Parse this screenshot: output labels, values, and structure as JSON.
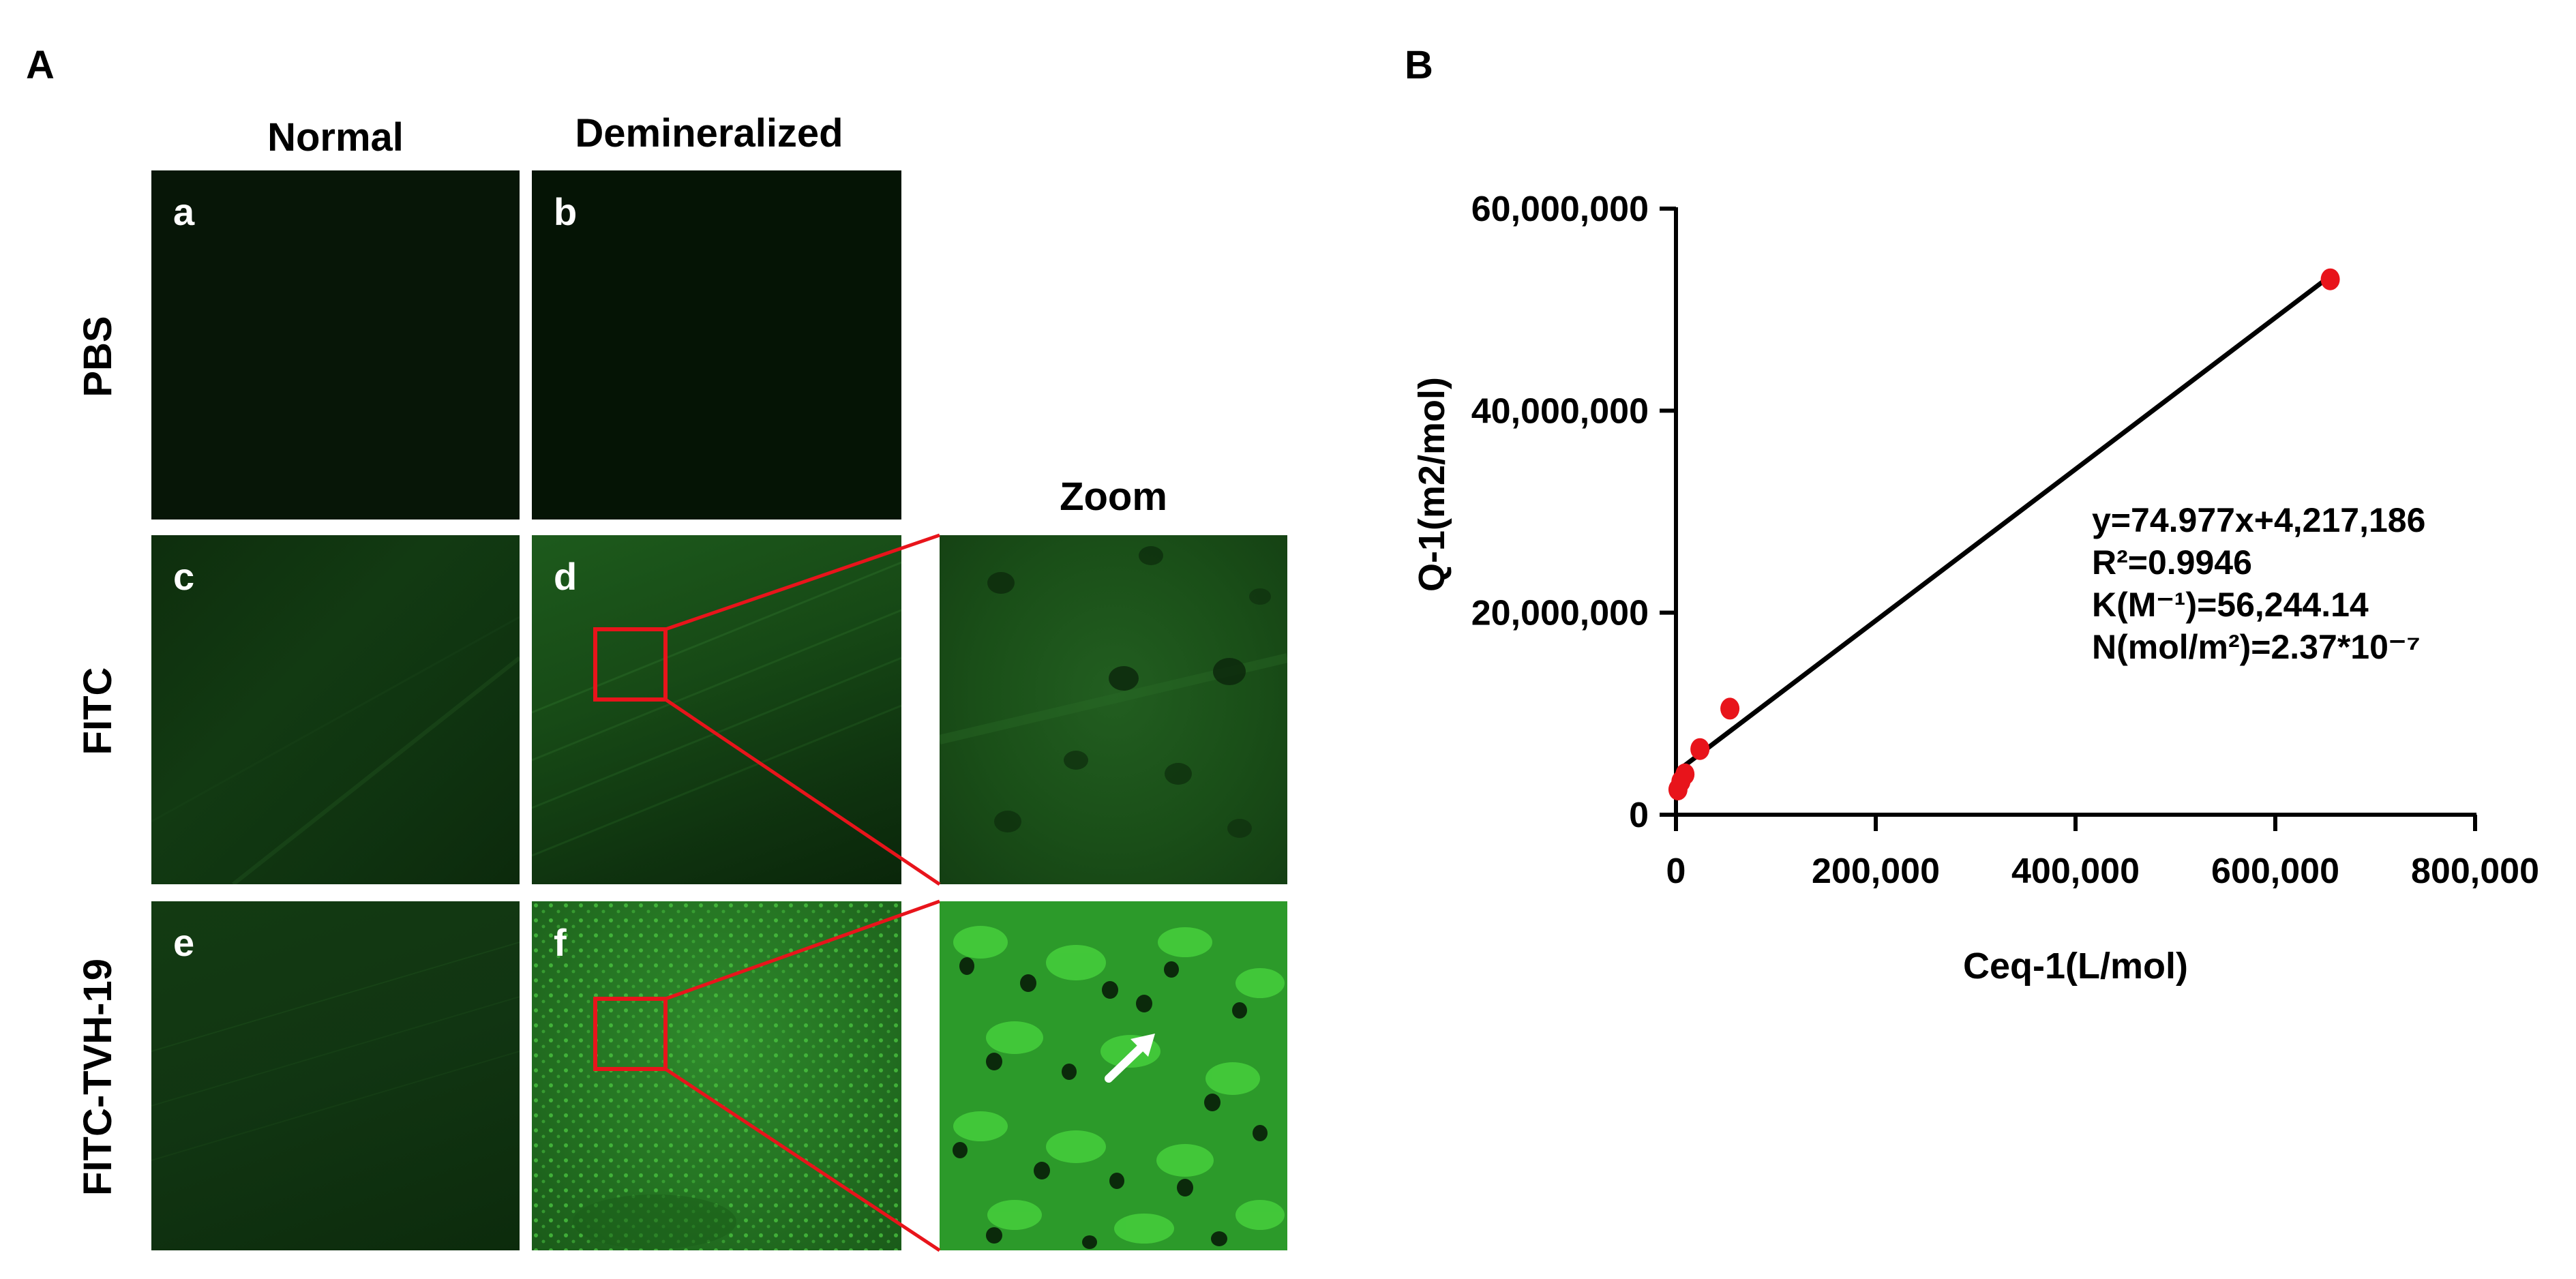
{
  "panel_a": {
    "letter": "A",
    "columns": [
      "Normal",
      "Demineralized",
      "Zoom"
    ],
    "rows": [
      "PBS",
      "FITC",
      "FITC-TVH-19"
    ],
    "sublabels": [
      "a",
      "b",
      "c",
      "d",
      "e",
      "f"
    ]
  },
  "panel_b": {
    "letter": "B",
    "annotations": [
      "y=74.977x+4,217,186",
      "R²=0.9946",
      "K(M⁻¹)=56,244.14",
      "N(mol/m²)=2.37*10⁻⁷"
    ]
  },
  "chart_data": {
    "type": "scatter",
    "xlabel": "Ceq-1(L/mol)",
    "ylabel": "Q-1(m2/mol)",
    "xlim": [
      0,
      800000
    ],
    "ylim": [
      0,
      60000000
    ],
    "x_ticks": [
      "0",
      "200,000",
      "400,000",
      "600,000",
      "800,000"
    ],
    "y_ticks": [
      "0",
      "20,000,000",
      "40,000,000",
      "60,000,000"
    ],
    "series": [
      {
        "points": [
          {
            "x": 2000,
            "y": 2500000
          },
          {
            "x": 5000,
            "y": 3300000
          },
          {
            "x": 9000,
            "y": 4000000
          },
          {
            "x": 24000,
            "y": 6500000
          },
          {
            "x": 54000,
            "y": 10500000
          },
          {
            "x": 655000,
            "y": 53000000
          }
        ],
        "color": "#e8141b"
      }
    ],
    "fit": {
      "slope": 74.977,
      "intercept": 4217186,
      "x_range": [
        0,
        655000
      ]
    },
    "colors": {
      "points": "#e8141b",
      "line": "#000000",
      "highlight": "#e8141b"
    }
  }
}
